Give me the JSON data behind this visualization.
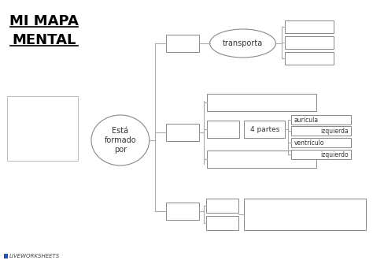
{
  "title_line1": "MI MAPA",
  "title_line2": "MENTAL",
  "center_ellipse_text": "Está\nformado\npor",
  "transporta_text": "transporta",
  "cuatro_partes_text": "4 partes",
  "auricula_text": "aurícula",
  "izquierda1_text": "izquierda",
  "ventriculo_text": "ventrículo",
  "izquierdo_text": "izquierdo",
  "liveworksheets_text": "LIVEWORKSHEETS",
  "bg_color": "#ffffff",
  "box_edgecolor": "#888888",
  "ellipse_color": "#888888",
  "title_color": "#000000",
  "text_color": "#333333",
  "line_color": "#aaaaaa"
}
